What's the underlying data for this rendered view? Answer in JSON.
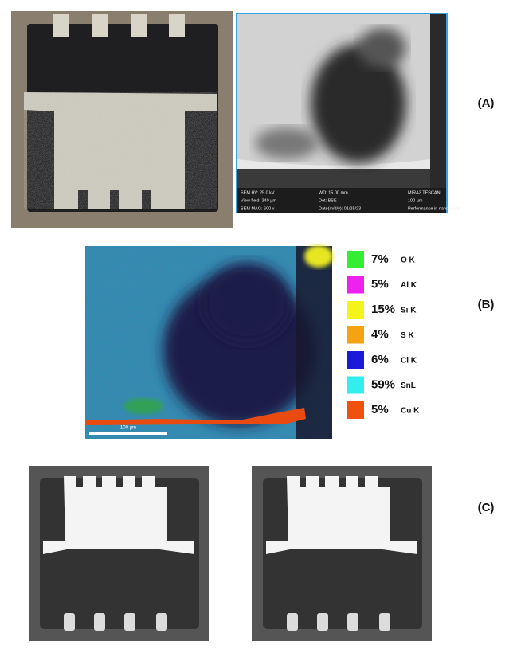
{
  "panels": {
    "a": {
      "label": "(A)",
      "sem_info": {
        "rows": [
          [
            "SEM HV: 25.0 kV",
            "WD: 15.00 mm",
            "MIRA3 TESCAN"
          ],
          [
            "View field: 340 µm",
            "Det: BSE",
            "100 µm"
          ],
          [
            "SEM MAG: 600 x",
            "Date(m/d/y): 01/25/23",
            "Performance in nanospace"
          ]
        ]
      }
    },
    "b": {
      "label": "(B)",
      "scale_bar": "100 µm",
      "legend": [
        {
          "percent": "7%",
          "element": "O K",
          "color": "#33ee33"
        },
        {
          "percent": "5%",
          "element": "Al K",
          "color": "#ee22ee"
        },
        {
          "percent": "15%",
          "element": "Si K",
          "color": "#f4f41a"
        },
        {
          "percent": "4%",
          "element": "S K",
          "color": "#f5a213"
        },
        {
          "percent": "6%",
          "element": "Cl K",
          "color": "#1a1ad8"
        },
        {
          "percent": "59%",
          "element": "SnL",
          "color": "#33eeee"
        },
        {
          "percent": "5%",
          "element": "Cu K",
          "color": "#f0520e"
        }
      ]
    },
    "c": {
      "label": "(C)"
    }
  }
}
